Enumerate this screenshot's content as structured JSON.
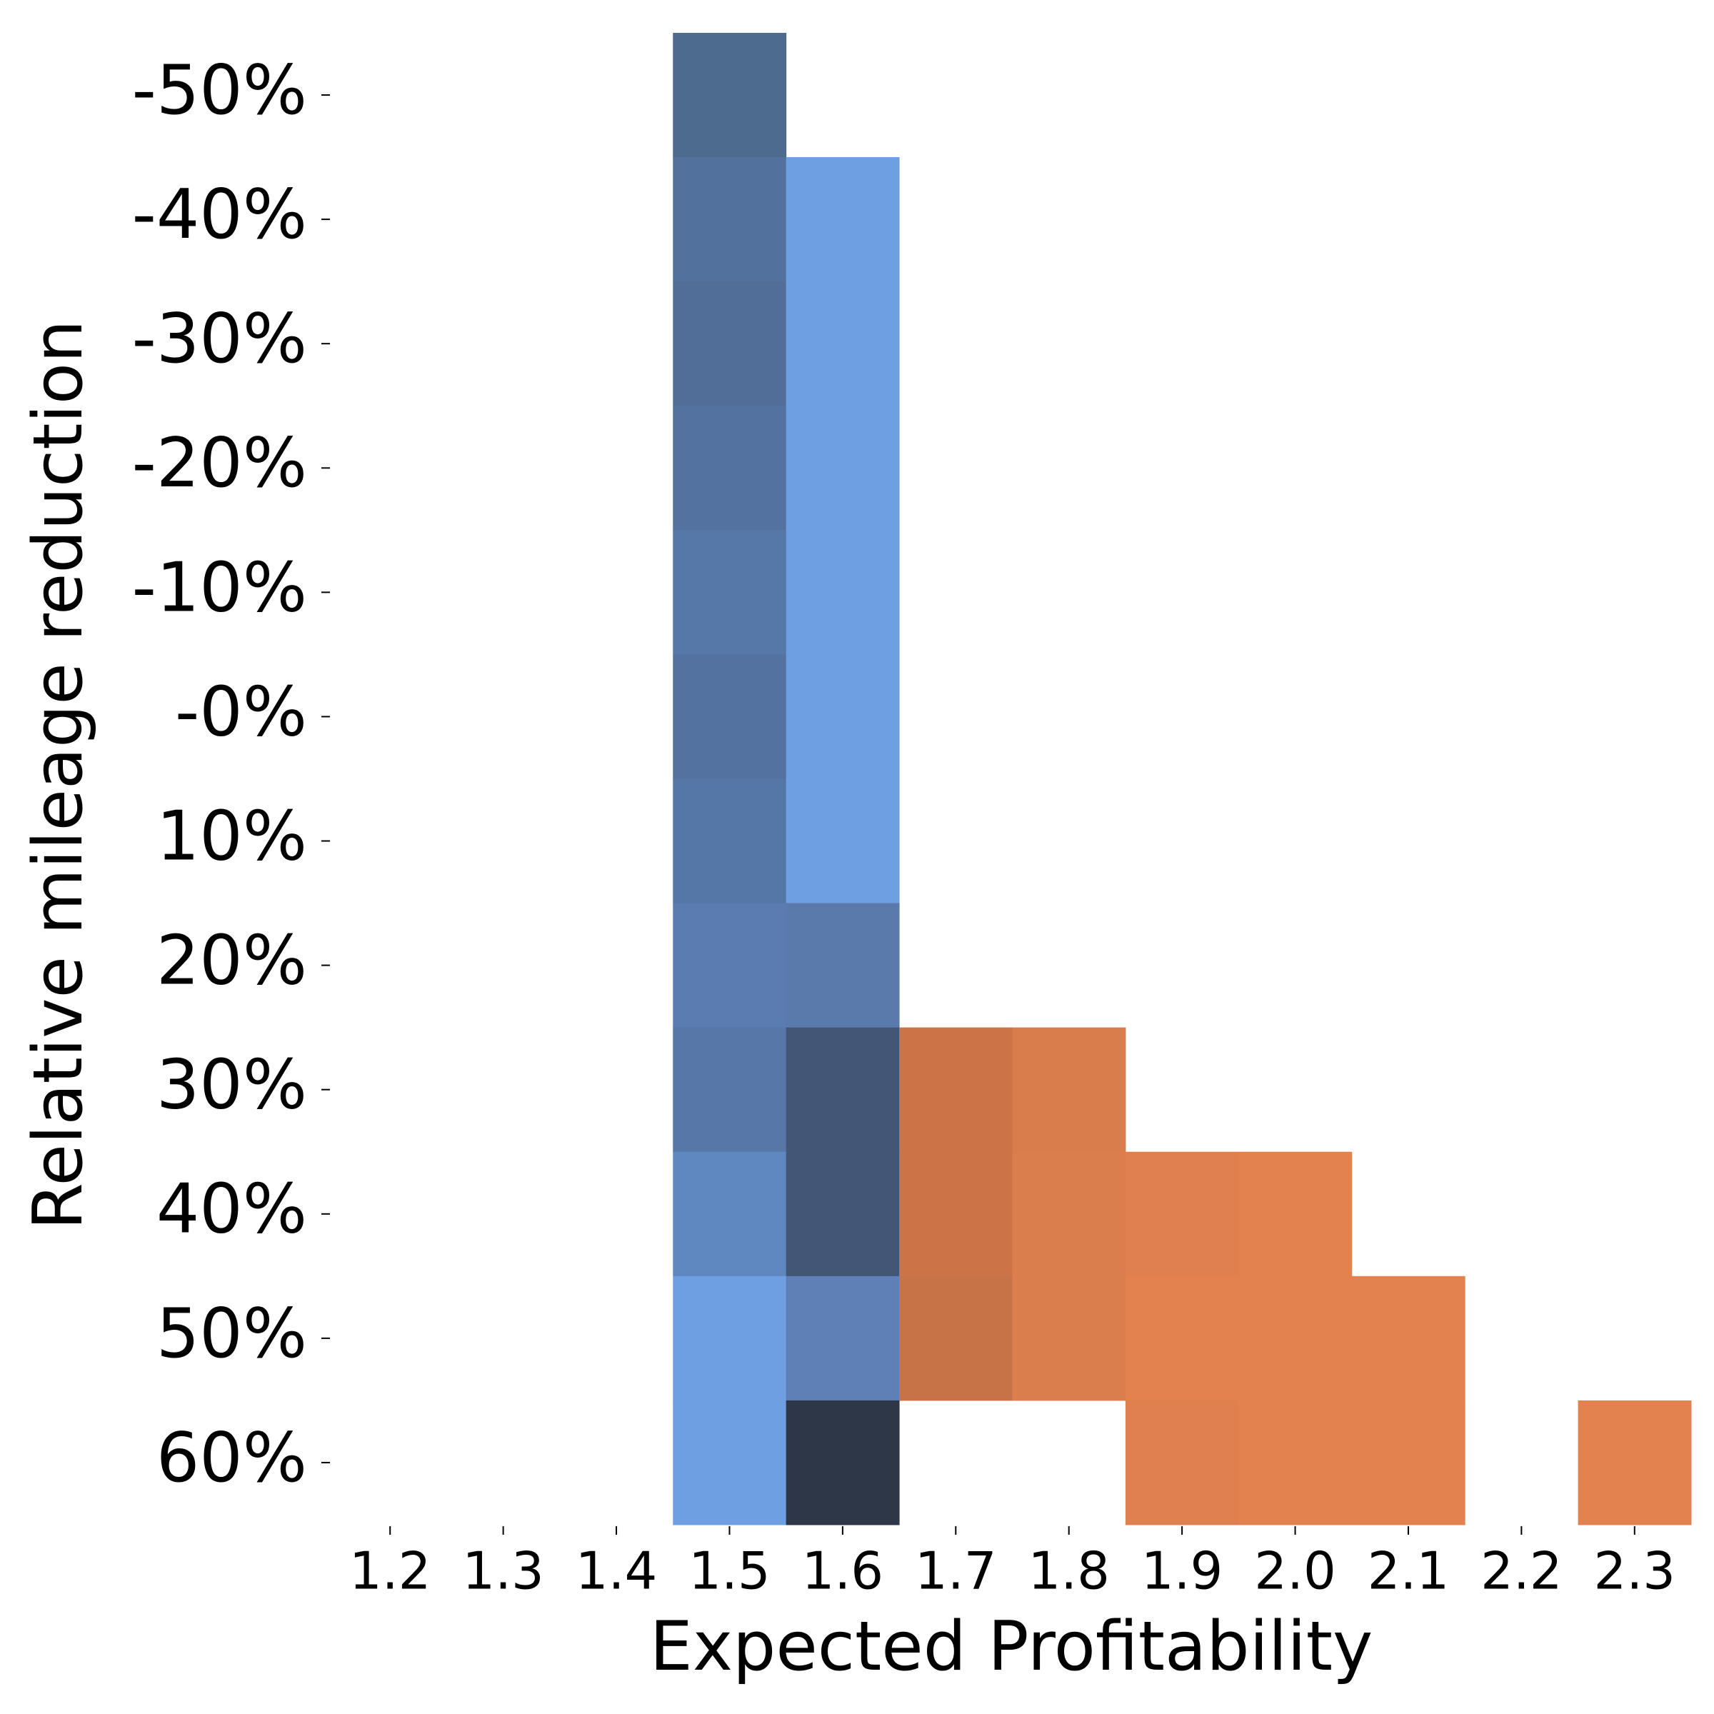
{
  "chart_data": {
    "type": "heatmap",
    "xlabel": "Expected Profitability",
    "ylabel": "Relative mileage reduction",
    "categories": [
      "-50%",
      "-40%",
      "-30%",
      "-20%",
      "-10%",
      "-0%",
      "10%",
      "20%",
      "30%",
      "40%",
      "50%",
      "60%"
    ],
    "bins": [
      1.45,
      1.55,
      1.65,
      1.75,
      1.85,
      1.95,
      2.05,
      2.15,
      2.25,
      2.35
    ],
    "cells": [
      [
        "#4d6a8f",
        null,
        null,
        null,
        null,
        null,
        null,
        null,
        null
      ],
      [
        "#52719c",
        "#6f9fe3",
        null,
        null,
        null,
        null,
        null,
        null,
        null
      ],
      [
        "#506e98",
        "#6f9fe3",
        null,
        null,
        null,
        null,
        null,
        null,
        null
      ],
      [
        "#53729f",
        "#6f9fe3",
        null,
        null,
        null,
        null,
        null,
        null,
        null
      ],
      [
        "#5678a8",
        "#6f9fe3",
        null,
        null,
        null,
        null,
        null,
        null,
        null
      ],
      [
        "#53729f",
        "#6f9fe3",
        null,
        null,
        null,
        null,
        null,
        null,
        null
      ],
      [
        "#5577a8",
        "#6f9fe3",
        null,
        null,
        null,
        null,
        null,
        null,
        null
      ],
      [
        "#5b7cb0",
        "#5a7aac",
        null,
        null,
        null,
        null,
        null,
        null,
        null
      ],
      [
        "#5677a8",
        "#435675",
        "#cc7447",
        "#d97d4d",
        null,
        null,
        null,
        null,
        null
      ],
      [
        "#5f87c0",
        "#435676",
        "#cc7447",
        "#db7e4e",
        "#df804e",
        "#e3824e",
        null,
        null,
        null
      ],
      [
        "#6f9fe3",
        "#5f80b7",
        "#c77347",
        "#db7e4e",
        "#e3824e",
        "#e3824e",
        "#e3824e",
        null,
        null
      ],
      [
        "#6f9fe3",
        "#2e3748",
        null,
        null,
        "#df804e",
        "#e3824e",
        "#e3824e",
        null,
        "#e3824e"
      ]
    ],
    "xlim": [
      1.15,
      2.35
    ],
    "xticks": [
      1.2,
      1.3,
      1.4,
      1.5,
      1.6,
      1.7,
      1.8,
      1.9,
      {
        "value": 2,
        "label": "2.0"
      },
      2.1,
      2.2,
      2.3
    ]
  }
}
